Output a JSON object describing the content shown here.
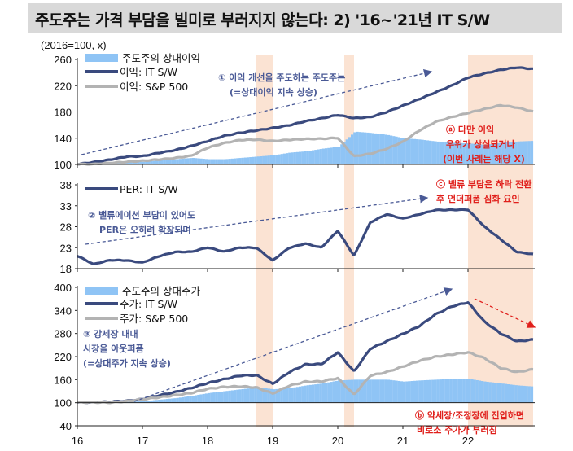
{
  "title": "주도주는 가격 부담을 빌미로 부러지지 않는다: 2) '16~'21년 IT S/W",
  "colors": {
    "it_sw": "#3a4a7e",
    "sp500": "#b3b3b3",
    "relative": "#8fc4f5",
    "shade": "#fbe3d3",
    "annotation": "#4a5a96",
    "highlight": "#e0201c"
  },
  "chart_data": [
    {
      "type": "line",
      "unit_label": "(2016=100, x)",
      "ylim": [
        100,
        260
      ],
      "yticks": [
        "100",
        "140",
        "180",
        "220",
        "260"
      ],
      "x_ticks": [
        "16",
        "17",
        "18",
        "19",
        "20",
        "21",
        "22"
      ],
      "x": [
        2016,
        2016.25,
        2016.5,
        2016.75,
        2017,
        2017.25,
        2017.5,
        2017.75,
        2018,
        2018.25,
        2018.5,
        2018.75,
        2019,
        2019.25,
        2019.5,
        2019.75,
        2020,
        2020.25,
        2020.5,
        2020.75,
        2021,
        2021.25,
        2021.5,
        2021.75,
        2022,
        2022.25,
        2022.5,
        2022.75,
        2023
      ],
      "shaded_periods": [
        [
          2018.75,
          2019.0
        ],
        [
          2020.1,
          2020.25
        ],
        [
          2022.0,
          2023.0
        ]
      ],
      "series": [
        {
          "name": "주도주의 상대이익",
          "style": "bar",
          "values": [
            100,
            100,
            102,
            104,
            104,
            106,
            108,
            110,
            108,
            108,
            110,
            112,
            114,
            118,
            120,
            124,
            127,
            150,
            148,
            145,
            140,
            138,
            135,
            133,
            132,
            130,
            133,
            135,
            136
          ]
        },
        {
          "name": "이익: IT S/W",
          "values": [
            100,
            103,
            107,
            112,
            113,
            118,
            122,
            128,
            135,
            143,
            148,
            152,
            156,
            160,
            166,
            170,
            175,
            170,
            172,
            180,
            190,
            200,
            210,
            220,
            232,
            238,
            244,
            248,
            246
          ]
        },
        {
          "name": "이익: S&P 500",
          "values": [
            100,
            100,
            102,
            104,
            106,
            108,
            110,
            113,
            125,
            132,
            137,
            138,
            136,
            138,
            139,
            139,
            140,
            112,
            116,
            124,
            135,
            152,
            165,
            172,
            178,
            184,
            190,
            187,
            181
          ]
        }
      ],
      "annotations": [
        "① 이익 개선을 주도하는 주도주는",
        "(=상대이익 지속 상승)",
        "ⓐ 다만 이익",
        "우위가 상실되거나",
        "(이번 사례는 해당 X)"
      ]
    },
    {
      "type": "line",
      "ylim": [
        18,
        38
      ],
      "yticks": [
        "18",
        "23",
        "28",
        "33",
        "38"
      ],
      "series": [
        {
          "name": "PER: IT S/W",
          "values": [
            21,
            19,
            20,
            20,
            19.5,
            21,
            22,
            22,
            23,
            22,
            23,
            23,
            20,
            23,
            24,
            23,
            27,
            21,
            29,
            31,
            30,
            31,
            32,
            32,
            32,
            28,
            25,
            22,
            21.5
          ]
        }
      ],
      "annotations": [
        "② 밸류에이션 부담이 있어도",
        "PER은 오히려 확장되며",
        "ⓒ 밸류 부담은 하락 전환",
        "후 언더퍼폼 심화 요인"
      ]
    },
    {
      "type": "line",
      "ylim": [
        40,
        400
      ],
      "yticks": [
        "40",
        "100",
        "160",
        "220",
        "280",
        "340",
        "400"
      ],
      "series": [
        {
          "name": "주도주의 상대주가",
          "style": "bar",
          "values": [
            100,
            100,
            100,
            102,
            104,
            108,
            112,
            118,
            125,
            130,
            135,
            140,
            135,
            138,
            145,
            150,
            158,
            160,
            160,
            160,
            155,
            158,
            160,
            162,
            162,
            155,
            150,
            145,
            142
          ]
        },
        {
          "name": "주가: IT S/W",
          "values": [
            100,
            100,
            102,
            105,
            110,
            120,
            128,
            138,
            150,
            160,
            170,
            172,
            150,
            180,
            200,
            200,
            230,
            180,
            240,
            260,
            280,
            300,
            330,
            350,
            360,
            310,
            280,
            260,
            265
          ]
        },
        {
          "name": "주가: S&P 500",
          "values": [
            100,
            100,
            100,
            104,
            110,
            115,
            120,
            125,
            135,
            140,
            142,
            140,
            125,
            145,
            155,
            155,
            163,
            120,
            170,
            180,
            195,
            210,
            220,
            225,
            230,
            215,
            190,
            180,
            188
          ]
        }
      ],
      "annotations": [
        "③ 강세장 내내",
        "시장을 아웃퍼폼",
        "(=상대주가 지속 상승)",
        "ⓑ 약세장/조정장에 진입하면",
        "비로소 주가가 부러짐"
      ]
    }
  ]
}
